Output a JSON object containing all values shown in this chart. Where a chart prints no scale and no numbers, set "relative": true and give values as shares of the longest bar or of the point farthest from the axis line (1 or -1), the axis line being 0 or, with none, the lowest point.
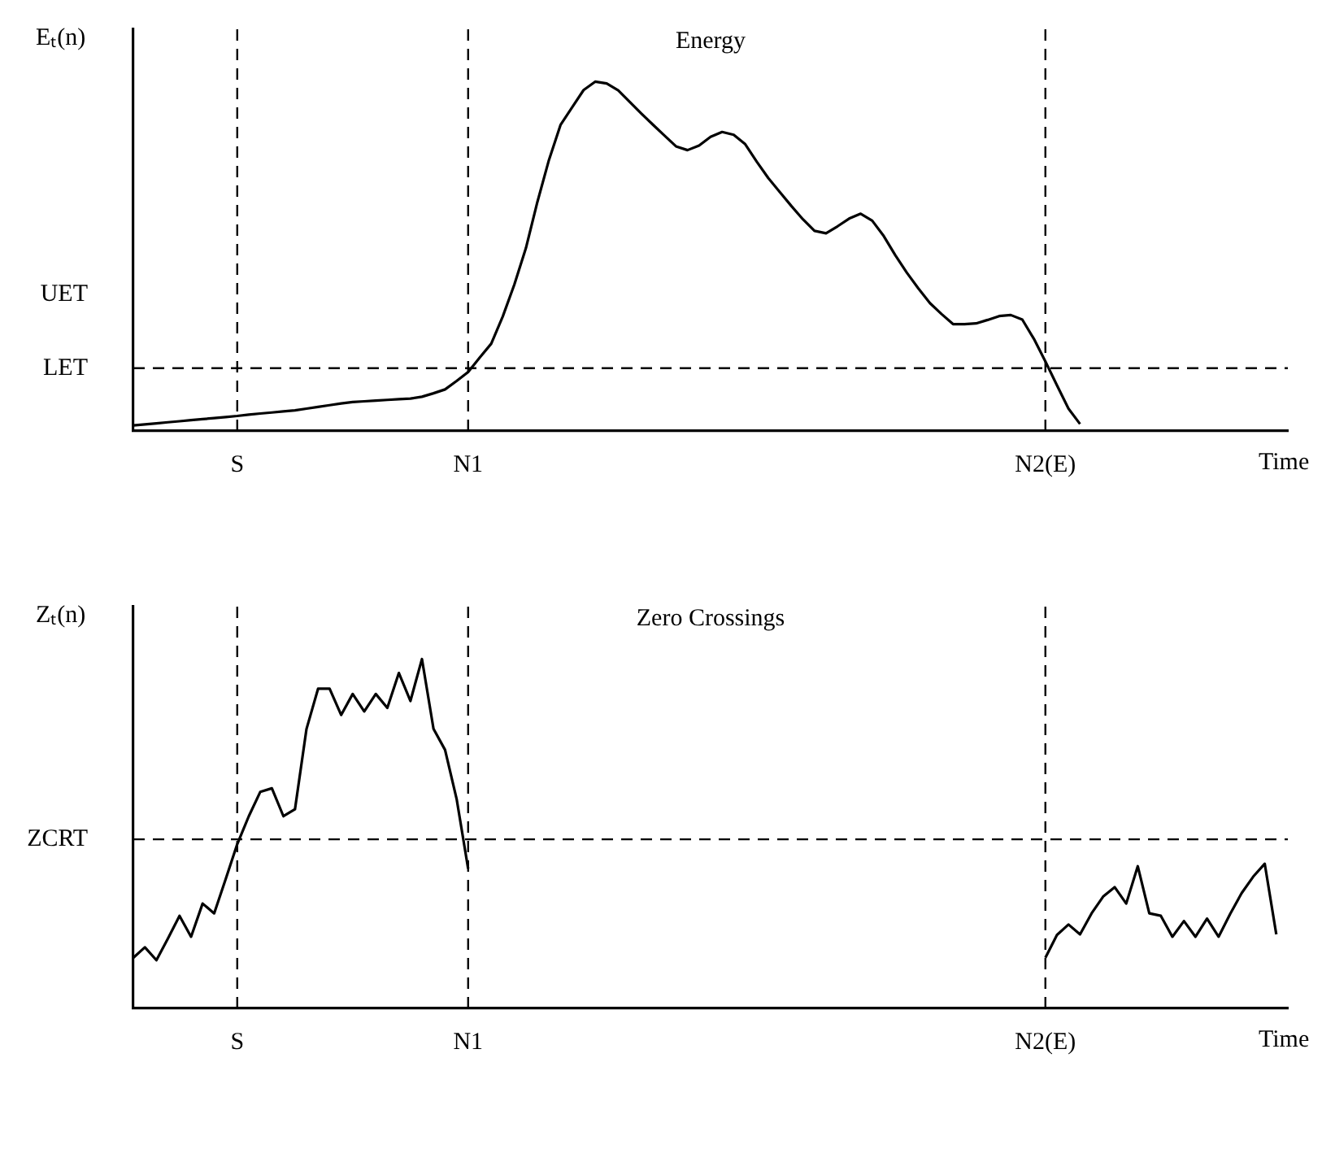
{
  "chart_data": [
    {
      "type": "line",
      "title": "Energy",
      "ylabel": "Eₜ(n)",
      "xlabel": "Time",
      "relative": true,
      "grid": false,
      "legend": false,
      "marker": "none",
      "categories": [
        null,
        null,
        null,
        null,
        null,
        null,
        null,
        null,
        null,
        "S",
        null,
        null,
        null,
        null,
        null,
        null,
        null,
        null,
        null,
        null,
        null,
        null,
        null,
        null,
        null,
        null,
        null,
        null,
        null,
        "N1",
        null,
        null,
        null,
        null,
        null,
        null,
        null,
        null,
        null,
        null,
        null,
        null,
        null,
        null,
        null,
        null,
        null,
        null,
        null,
        null,
        null,
        null,
        null,
        null,
        null,
        null,
        null,
        null,
        null,
        null,
        null,
        null,
        null,
        null,
        null,
        null,
        null,
        null,
        null,
        null,
        null,
        null,
        null,
        null,
        null,
        null,
        null,
        null,
        null,
        "N2(E)",
        null,
        null,
        null,
        null,
        null,
        null,
        null,
        null,
        null,
        null,
        null,
        null,
        null,
        null,
        null,
        null,
        null,
        null,
        null,
        null,
        null
      ],
      "series": [
        {
          "color": "#000000",
          "values": [
            0.016,
            0.019,
            0.022,
            0.025,
            0.028,
            0.031,
            0.034,
            0.037,
            0.04,
            0.043,
            0.047,
            0.05,
            0.053,
            0.056,
            0.059,
            0.064,
            0.069,
            0.074,
            0.079,
            0.083,
            0.085,
            0.087,
            0.089,
            0.091,
            0.093,
            0.098,
            0.108,
            0.119,
            0.143,
            0.169,
            0.21,
            0.25,
            0.328,
            0.419,
            0.523,
            0.656,
            0.776,
            0.876,
            0.926,
            0.976,
            1,
            0.995,
            0.975,
            0.942,
            0.909,
            0.877,
            0.846,
            0.815,
            0.804,
            0.817,
            0.842,
            0.856,
            0.848,
            0.821,
            0.771,
            0.724,
            0.684,
            0.644,
            0.606,
            0.573,
            0.566,
            0.586,
            0.608,
            0.622,
            0.602,
            0.558,
            0.503,
            0.453,
            0.408,
            0.366,
            0.335,
            0.306,
            0.306,
            0.308,
            0.318,
            0.329,
            0.332,
            0.319,
            0.264,
            0.199,
            0.131,
            0.064,
            0.02,
            null,
            null,
            null,
            null,
            null,
            null,
            null,
            null,
            null,
            null,
            null,
            null,
            null,
            null,
            null,
            null,
            null,
            null
          ]
        }
      ],
      "ref_lines": [
        {
          "axis": "x",
          "value": "S",
          "line_style": "dashed"
        },
        {
          "axis": "x",
          "value": "N1",
          "line_style": "dashed"
        },
        {
          "axis": "x",
          "value": "N2(E)",
          "line_style": "dashed"
        },
        {
          "axis": "y",
          "value": 0.18,
          "label": "LET",
          "line_style": "dashed"
        }
      ],
      "annotations": [
        "UET"
      ]
    },
    {
      "type": "line",
      "title": "Zero Crossings",
      "ylabel": "Zₜ(n)",
      "xlabel": "Time",
      "relative": true,
      "grid": false,
      "legend": false,
      "marker": "none",
      "categories": [
        null,
        null,
        null,
        null,
        null,
        null,
        null,
        null,
        null,
        "S",
        null,
        null,
        null,
        null,
        null,
        null,
        null,
        null,
        null,
        null,
        null,
        null,
        null,
        null,
        null,
        null,
        null,
        null,
        null,
        "N1",
        null,
        null,
        null,
        null,
        null,
        null,
        null,
        null,
        null,
        null,
        null,
        null,
        null,
        null,
        null,
        null,
        null,
        null,
        null,
        null,
        null,
        null,
        null,
        null,
        null,
        null,
        null,
        null,
        null,
        null,
        null,
        null,
        null,
        null,
        null,
        null,
        null,
        null,
        null,
        null,
        null,
        null,
        null,
        null,
        null,
        null,
        null,
        null,
        null,
        "N2(E)",
        null,
        null,
        null,
        null,
        null,
        null,
        null,
        null,
        null,
        null,
        null,
        null,
        null,
        null,
        null,
        null,
        null,
        null,
        null,
        null,
        null
      ],
      "series": [
        {
          "color": "#000000",
          "values": [
            0.145,
            0.175,
            0.138,
            0.2,
            0.265,
            0.205,
            0.3,
            0.272,
            0.37,
            0.47,
            0.55,
            0.62,
            0.63,
            0.55,
            0.57,
            0.8,
            0.915,
            0.915,
            0.84,
            0.9,
            0.85,
            0.9,
            0.86,
            0.96,
            0.88,
            1,
            0.8,
            0.74,
            0.6,
            0.4,
            null,
            null,
            null,
            null,
            null,
            null,
            null,
            null,
            null,
            null,
            null,
            null,
            null,
            null,
            null,
            null,
            null,
            null,
            null,
            null,
            null,
            null,
            null,
            null,
            null,
            null,
            null,
            null,
            null,
            null,
            null,
            null,
            null,
            null,
            null,
            null,
            null,
            null,
            null,
            null,
            null,
            null,
            null,
            null,
            null,
            null,
            null,
            null,
            null,
            null,
            null,
            null,
            null,
            null,
            null,
            null,
            null,
            null,
            null,
            null,
            null,
            null,
            null,
            null,
            null,
            null,
            null,
            null,
            null,
            null,
            null
          ]
        },
        {
          "color": "#000000",
          "values": [
            null,
            null,
            null,
            null,
            null,
            null,
            null,
            null,
            null,
            null,
            null,
            null,
            null,
            null,
            null,
            null,
            null,
            null,
            null,
            null,
            null,
            null,
            null,
            null,
            null,
            null,
            null,
            null,
            null,
            null,
            null,
            null,
            null,
            null,
            null,
            null,
            null,
            null,
            null,
            null,
            null,
            null,
            null,
            null,
            null,
            null,
            null,
            null,
            null,
            null,
            null,
            null,
            null,
            null,
            null,
            null,
            null,
            null,
            null,
            null,
            null,
            null,
            null,
            null,
            null,
            null,
            null,
            null,
            null,
            null,
            null,
            null,
            null,
            null,
            null,
            null,
            null,
            null,
            null,
            0.145,
            0.21,
            0.24,
            0.212,
            0.272,
            0.32,
            0.347,
            0.3,
            0.407,
            0.272,
            0.265,
            0.205,
            0.25,
            0.205,
            0.257,
            0.205,
            0.27,
            0.33,
            0.377,
            0.414,
            0.212,
            null
          ]
        }
      ],
      "ref_lines": [
        {
          "axis": "x",
          "value": "S",
          "line_style": "dashed"
        },
        {
          "axis": "x",
          "value": "N1",
          "line_style": "dashed"
        },
        {
          "axis": "x",
          "value": "N2(E)",
          "line_style": "dashed"
        },
        {
          "axis": "y",
          "value": 0.484,
          "label": "ZCRT",
          "line_style": "dashed"
        }
      ]
    }
  ]
}
